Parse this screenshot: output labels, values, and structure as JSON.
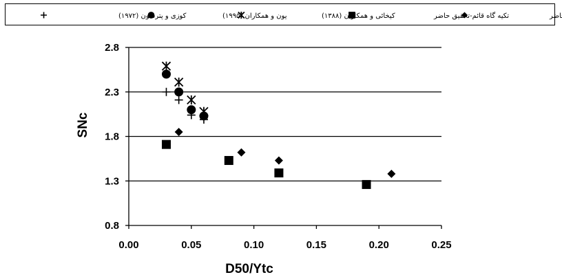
{
  "chart_data": {
    "type": "scatter",
    "xlabel": "D50/Ytc",
    "ylabel": "SNc",
    "xlim": [
      0.0,
      0.25
    ],
    "ylim": [
      0.8,
      2.8
    ],
    "x_ticks": [
      "0.00",
      "0.05",
      "0.10",
      "0.15",
      "0.20",
      "0.25"
    ],
    "y_ticks": [
      "0.8",
      "1.3",
      "1.8",
      "2.3",
      "2.8"
    ],
    "gridlines": "horizontal",
    "legend_position": "top",
    "series": [
      {
        "name": "تکیه گاه بالدار-تحقیق حاضر",
        "marker": "diamond",
        "points": [
          {
            "x": 0.04,
            "y": 1.85
          },
          {
            "x": 0.09,
            "y": 1.62
          },
          {
            "x": 0.12,
            "y": 1.53
          },
          {
            "x": 0.21,
            "y": 1.38
          }
        ]
      },
      {
        "name": "تکیه گاه قائم-تحقیق حاضر",
        "marker": "square",
        "points": [
          {
            "x": 0.03,
            "y": 1.71
          },
          {
            "x": 0.08,
            "y": 1.53
          },
          {
            "x": 0.12,
            "y": 1.39
          },
          {
            "x": 0.19,
            "y": 1.26
          }
        ]
      },
      {
        "name": "کیخائی و همکاران (۱۳۸۸)",
        "marker": "asterisk",
        "points": [
          {
            "x": 0.03,
            "y": 2.59
          },
          {
            "x": 0.04,
            "y": 2.41
          },
          {
            "x": 0.05,
            "y": 2.21
          },
          {
            "x": 0.06,
            "y": 2.08
          }
        ]
      },
      {
        "name": "یون و همکاران (۱۹۹۵)",
        "marker": "circle",
        "points": [
          {
            "x": 0.03,
            "y": 2.5
          },
          {
            "x": 0.04,
            "y": 2.3
          },
          {
            "x": 0.05,
            "y": 2.1
          },
          {
            "x": 0.06,
            "y": 2.03
          }
        ]
      },
      {
        "name": "کوزی و پترسون (۱۹۷۲)",
        "marker": "plus",
        "points": [
          {
            "x": 0.03,
            "y": 2.3
          },
          {
            "x": 0.04,
            "y": 2.21
          },
          {
            "x": 0.05,
            "y": 2.04
          },
          {
            "x": 0.06,
            "y": 1.99
          }
        ]
      }
    ]
  }
}
